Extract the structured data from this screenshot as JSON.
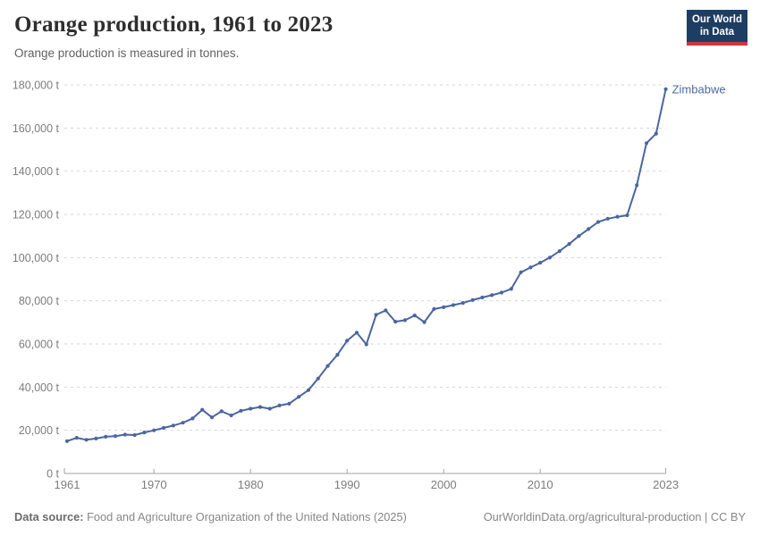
{
  "header": {
    "title": "Orange production, 1961 to 2023",
    "subtitle": "Orange production is measured in tonnes."
  },
  "logo": {
    "line1": "Our World",
    "line2": "in Data",
    "bg": "#1d3d63",
    "accent": "#cf3541"
  },
  "chart_data": {
    "type": "line",
    "title": "Orange production, 1961 to 2023",
    "unit": "t",
    "xlabel": "",
    "ylabel": "",
    "xlim": [
      1961,
      2023
    ],
    "ylim": [
      0,
      180000
    ],
    "grid": "horizontal-dashed",
    "legend_position": "end-of-line",
    "x_ticks": [
      1961,
      1970,
      1980,
      1990,
      2000,
      2010,
      2023
    ],
    "y_ticks": [
      0,
      20000,
      40000,
      60000,
      80000,
      100000,
      120000,
      140000,
      160000,
      180000
    ],
    "series": [
      {
        "name": "Zimbabwe",
        "color": "#4a66a0",
        "x": [
          1961,
          1962,
          1963,
          1964,
          1965,
          1966,
          1967,
          1968,
          1969,
          1970,
          1971,
          1972,
          1973,
          1974,
          1975,
          1976,
          1977,
          1978,
          1979,
          1980,
          1981,
          1982,
          1983,
          1984,
          1985,
          1986,
          1987,
          1988,
          1989,
          1990,
          1991,
          1992,
          1993,
          1994,
          1995,
          1996,
          1997,
          1998,
          1999,
          2000,
          2001,
          2002,
          2003,
          2004,
          2005,
          2006,
          2007,
          2008,
          2009,
          2010,
          2011,
          2012,
          2013,
          2014,
          2015,
          2016,
          2017,
          2018,
          2019,
          2020,
          2021,
          2022,
          2023
        ],
        "values": [
          15000,
          16500,
          15600,
          16200,
          17000,
          17300,
          18000,
          17800,
          19000,
          20000,
          21100,
          22200,
          23500,
          25500,
          29500,
          26000,
          28800,
          26900,
          29000,
          30000,
          30800,
          30000,
          31500,
          32300,
          35500,
          38600,
          44000,
          49800,
          55000,
          61500,
          65200,
          59800,
          73500,
          75500,
          70300,
          71000,
          73200,
          70100,
          76200,
          77000,
          78000,
          79000,
          80300,
          81500,
          82600,
          83800,
          85500,
          93200,
          95400,
          97600,
          100000,
          103000,
          106300,
          110000,
          113200,
          116500,
          118000,
          118900,
          119600,
          133500,
          153000,
          157400,
          178000
        ]
      }
    ]
  },
  "axis_style": {
    "y_label_suffix": " t",
    "grid_color": "#d6d6d6",
    "axis_color": "#a3a3a3",
    "tick_label_color": "#7d7d7d"
  },
  "footer": {
    "source_label": "Data source:",
    "source_text": "Food and Agriculture Organization of the United Nations (2025)",
    "credit": "OurWorldinData.org/agricultural-production | CC BY"
  }
}
